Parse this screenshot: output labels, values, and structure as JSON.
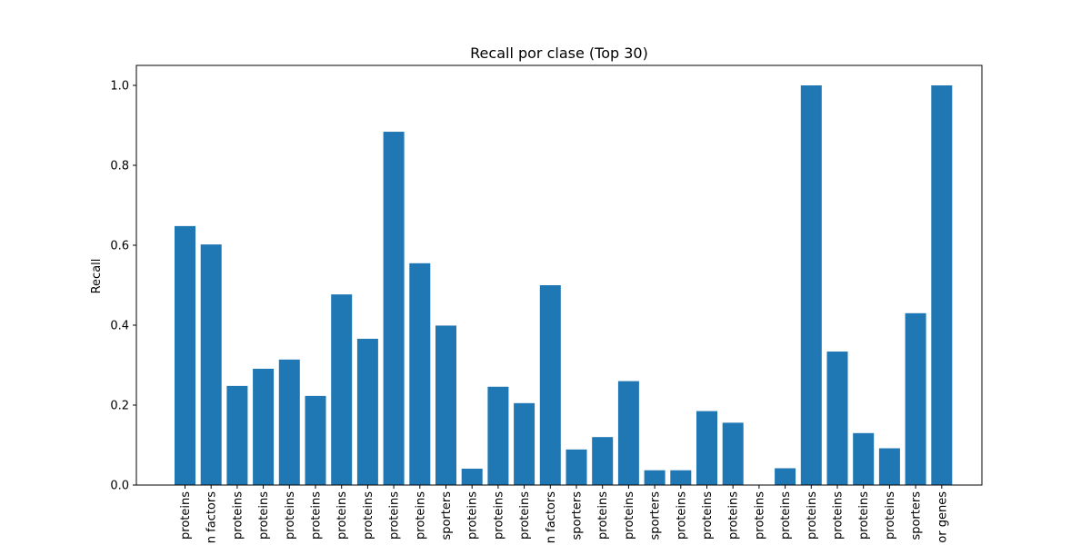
{
  "chart_data": {
    "type": "bar",
    "title": "Recall por clase (Top 30)",
    "xlabel": "",
    "ylabel": "Recall",
    "ylim": [
      0,
      1.05
    ],
    "yticks": [
      0.0,
      0.2,
      0.4,
      0.6,
      0.8,
      1.0
    ],
    "ytick_labels": [
      "0.0",
      "0.2",
      "0.4",
      "0.6",
      "0.8",
      "1.0"
    ],
    "color": "#1f77b4",
    "grid": false,
    "categories": [
      "proteins",
      "factors",
      "proteins",
      "proteins",
      "proteins",
      "proteins",
      "proteins",
      "proteins",
      "proteins",
      "proteins",
      "sporters",
      "proteins",
      "proteins",
      "proteins",
      "factors",
      "sporters",
      "proteins",
      "proteins",
      "sporters",
      "proteins",
      "proteins",
      "proteins",
      "proteins",
      "proteins",
      "proteins",
      "proteins",
      "proteins",
      "proteins",
      "sporters",
      "genes"
    ],
    "category_labels_visible": [
      "proteins",
      "n factors",
      "proteins",
      "proteins",
      "proteins",
      "proteins",
      "proteins",
      "proteins",
      "proteins",
      "proteins",
      "sporters",
      "proteins",
      "proteins",
      "proteins",
      "n factors",
      "sporters",
      "proteins",
      "proteins",
      "sporters",
      "proteins",
      "proteins",
      "proteins",
      "proteins",
      "proteins",
      "proteins",
      "proteins",
      "proteins",
      "proteins",
      "sporters",
      "or genes"
    ],
    "values": [
      0.648,
      0.602,
      0.248,
      0.291,
      0.314,
      0.223,
      0.477,
      0.366,
      0.884,
      0.555,
      0.399,
      0.041,
      0.246,
      0.205,
      0.5,
      0.089,
      0.12,
      0.26,
      0.037,
      0.037,
      0.185,
      0.156,
      0.0,
      0.042,
      1.0,
      0.334,
      0.13,
      0.092,
      0.43,
      1.0
    ]
  }
}
